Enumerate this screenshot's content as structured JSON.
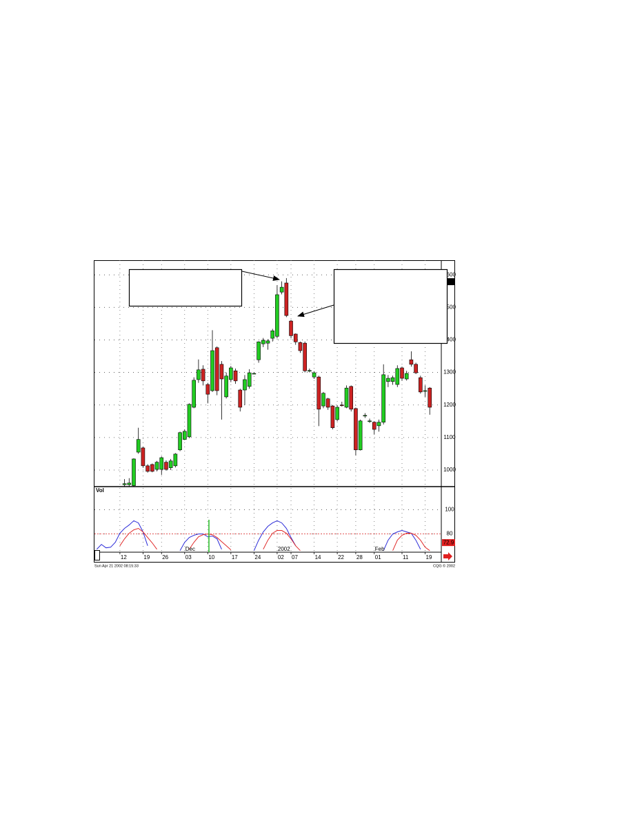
{
  "chart_data": [
    {
      "type": "candlestick",
      "categories": [
        null,
        null,
        null,
        null,
        null,
        "12",
        null,
        null,
        null,
        null,
        "19",
        null,
        null,
        null,
        "26",
        null,
        null,
        null,
        null,
        "03",
        null,
        null,
        null,
        null,
        "10",
        null,
        null,
        null,
        null,
        "17",
        null,
        null,
        null,
        null,
        "24",
        null,
        null,
        null,
        null,
        "02",
        null,
        null,
        "07",
        null,
        null,
        null,
        null,
        "14",
        null,
        null,
        null,
        null,
        "22",
        null,
        null,
        null,
        "28",
        null,
        null,
        null,
        "01",
        null,
        null,
        null,
        null,
        null,
        "11",
        null,
        null,
        null,
        null,
        "19",
        null,
        null,
        null
      ],
      "period_labels": [
        null,
        null,
        null,
        null,
        null,
        null,
        null,
        null,
        null,
        null,
        null,
        null,
        null,
        null,
        null,
        null,
        null,
        null,
        null,
        "Dec",
        null,
        null,
        null,
        null,
        null,
        null,
        null,
        null,
        null,
        null,
        null,
        null,
        null,
        null,
        null,
        null,
        null,
        null,
        null,
        "2002",
        null,
        null,
        null,
        null,
        null,
        null,
        null,
        null,
        null,
        null,
        null,
        null,
        null,
        null,
        null,
        null,
        null,
        null,
        null,
        null,
        "Feb",
        null,
        null,
        null,
        null,
        null,
        null,
        null,
        null,
        null,
        null,
        null,
        null,
        null,
        null
      ],
      "open": [
        null,
        null,
        null,
        null,
        null,
        null,
        955,
        955,
        952,
        1055,
        1068,
        1013,
        1017,
        1002,
        1002,
        1024,
        1007,
        1013,
        1062,
        1094,
        1102,
        1193,
        1278,
        1310,
        1263,
        1244,
        1376,
        1325,
        1225,
        1278,
        1305,
        1246,
        1246,
        1257,
        1297,
        1339,
        1388,
        1390,
        1405,
        1411,
        1547,
        1575,
        1458,
        1418,
        1392,
        1390,
        1305,
        1286,
        1286,
        1197,
        1219,
        1197,
        1155,
        1200,
        1193,
        1257,
        1189,
        1062,
        1168,
        1150,
        1147,
        1136,
        1147,
        1272,
        1272,
        1263,
        1314,
        1280,
        1339,
        1325,
        1284,
        1244,
        1252,
        null,
        null
      ],
      "high": [
        null,
        null,
        null,
        null,
        null,
        null,
        972,
        975,
        1036,
        1130,
        1072,
        1018,
        1020,
        1028,
        1042,
        1030,
        1034,
        1052,
        1118,
        1125,
        1205,
        1285,
        1340,
        1322,
        1268,
        1430,
        1380,
        1335,
        1300,
        1320,
        1312,
        1250,
        1292,
        1310,
        1299,
        1396,
        1406,
        1402,
        1434,
        1568,
        1580,
        1590,
        1462,
        1420,
        1395,
        1395,
        1312,
        1304,
        1290,
        1240,
        1222,
        1200,
        1200,
        1210,
        1260,
        1260,
        1192,
        1155,
        1175,
        1158,
        1150,
        1155,
        1325,
        1292,
        1290,
        1322,
        1318,
        1305,
        1365,
        1330,
        1290,
        1260,
        1255,
        null,
        null
      ],
      "low": [
        null,
        null,
        null,
        null,
        null,
        null,
        950,
        950,
        948,
        1050,
        1008,
        992,
        993,
        996,
        985,
        998,
        1000,
        1008,
        1058,
        1092,
        1098,
        1190,
        1268,
        1260,
        1205,
        1240,
        1230,
        1155,
        1220,
        1270,
        1265,
        1180,
        1200,
        1250,
        1295,
        1330,
        1378,
        1370,
        1395,
        1405,
        1540,
        1470,
        1405,
        1385,
        1360,
        1300,
        1300,
        1280,
        1135,
        1190,
        1185,
        1125,
        1150,
        1195,
        1190,
        1180,
        1045,
        1060,
        1160,
        1145,
        1110,
        1118,
        1140,
        1255,
        1262,
        1255,
        1275,
        1275,
        1318,
        1295,
        1235,
        1225,
        1170,
        null,
        null
      ],
      "close": [
        null,
        null,
        null,
        null,
        null,
        null,
        958,
        960,
        1034,
        1094,
        1013,
        996,
        996,
        1024,
        1038,
        1002,
        1028,
        1049,
        1115,
        1119,
        1202,
        1276,
        1308,
        1274,
        1233,
        1367,
        1244,
        1280,
        1289,
        1314,
        1274,
        1193,
        1278,
        1299,
        1297,
        1394,
        1399,
        1397,
        1428,
        1539,
        1562,
        1475,
        1413,
        1394,
        1367,
        1305,
        1306,
        1299,
        1187,
        1236,
        1193,
        1130,
        1193,
        1199,
        1252,
        1187,
        1062,
        1151,
        1168,
        1151,
        1125,
        1147,
        1293,
        1282,
        1284,
        1312,
        1282,
        1297,
        1325,
        1299,
        1240,
        1244,
        1193,
        null,
        null
      ],
      "up_color": "#22cc22",
      "down_color": "#cc2222",
      "ylim": [
        949,
        1645
      ],
      "yticks": [
        1000,
        1100,
        1200,
        1300,
        1400,
        1500,
        1600
      ],
      "grid": true,
      "current_value": 1579
    },
    {
      "type": "line",
      "title": "Vol",
      "series": [
        {
          "color": "#2a2ad8",
          "values": [
            67.4,
            71.4,
            68.6,
            69.1,
            73.1,
            80.6,
            84.6,
            87.4,
            90.9,
            89.1,
            81.7,
            70.3,
            null,
            null,
            null,
            null,
            null,
            null,
            66.3,
            73.1,
            77.1,
            78.9,
            80,
            80,
            77.7,
            78.3,
            76,
            67.4,
            null,
            null,
            null,
            null,
            null,
            null,
            66.3,
            74.9,
            81.7,
            86.3,
            89.1,
            90.9,
            89.1,
            84.6,
            77.1,
            70.3,
            null,
            null,
            null,
            null,
            null,
            null,
            null,
            null,
            null,
            null,
            null,
            null,
            null,
            null,
            null,
            null,
            null,
            null,
            66.3,
            74.9,
            80,
            81.7,
            82.9,
            81.7,
            80.6,
            74.9,
            67.4,
            null,
            null,
            null,
            null
          ]
        },
        {
          "color": "#e02a2a",
          "values": [
            null,
            null,
            null,
            null,
            null,
            70.3,
            76,
            80.6,
            83.4,
            84.6,
            81.7,
            77.1,
            72.6,
            67.4,
            null,
            null,
            null,
            null,
            null,
            null,
            67.4,
            73.1,
            77.7,
            79.4,
            80,
            79.4,
            77.1,
            73.7,
            70.3,
            66.9,
            null,
            null,
            null,
            null,
            null,
            null,
            67.4,
            74.9,
            80.6,
            82.9,
            82.9,
            80.6,
            76,
            70.3,
            66.3,
            null,
            null,
            null,
            null,
            null,
            null,
            null,
            null,
            null,
            null,
            null,
            null,
            null,
            null,
            null,
            null,
            null,
            null,
            null,
            66.3,
            74.9,
            78.9,
            80.6,
            80.6,
            78.9,
            74.9,
            69.1,
            66.3,
            null,
            null
          ]
        }
      ],
      "ylim": [
        65,
        119
      ],
      "yticks": [
        80,
        100
      ],
      "reference_line": 80,
      "current_value": 72.9
    }
  ],
  "footer": {
    "timestamp": "Sun Apr 21 2002 08:15:33",
    "copyright": "CQG © 2002"
  }
}
